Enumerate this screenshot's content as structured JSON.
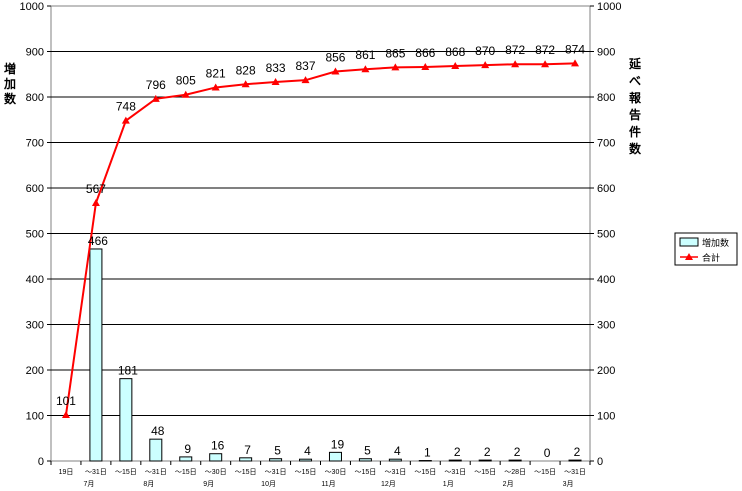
{
  "chart_data": {
    "type": "bar+line",
    "title": "",
    "ylabel_left": "増加数",
    "ylabel_right": "延べ報告件数",
    "ylim": [
      0,
      1000
    ],
    "yticks": [
      0,
      100,
      200,
      300,
      400,
      500,
      600,
      700,
      800,
      900,
      1000
    ],
    "grid": true,
    "legend_position": "right",
    "categories": [
      "19日",
      "～31日",
      "～15日",
      "～31日",
      "～15日",
      "～30日",
      "～15日",
      "～31日",
      "～15日",
      "～30日",
      "～15日",
      "～31日",
      "～15日",
      "～31日",
      "～15日",
      "～28日",
      "～15日",
      "～31日"
    ],
    "months": [
      {
        "label": "7月",
        "index": 1
      },
      {
        "label": "8月",
        "index": 3
      },
      {
        "label": "9月",
        "index": 5
      },
      {
        "label": "10月",
        "index": 7
      },
      {
        "label": "11月",
        "index": 9
      },
      {
        "label": "12月",
        "index": 11
      },
      {
        "label": "1月",
        "index": 13
      },
      {
        "label": "2月",
        "index": 15
      },
      {
        "label": "3月",
        "index": 17
      }
    ],
    "series": [
      {
        "name": "増加数",
        "type": "bar",
        "color": "#ccffff",
        "values": [
          null,
          466,
          181,
          48,
          9,
          16,
          7,
          5,
          4,
          19,
          5,
          4,
          1,
          2,
          2,
          2,
          0,
          2
        ],
        "labels": [
          "",
          "466",
          "181",
          "48",
          "9",
          "16",
          "7",
          "5",
          "4",
          "19",
          "5",
          "4",
          "1",
          "2",
          "2",
          "2",
          "0",
          "2"
        ]
      },
      {
        "name": "合計",
        "type": "line",
        "color": "#ff0000",
        "marker": "triangle",
        "values": [
          101,
          567,
          748,
          796,
          805,
          821,
          828,
          833,
          837,
          856,
          861,
          865,
          866,
          868,
          870,
          872,
          872,
          874
        ],
        "labels": [
          "101",
          "567",
          "748",
          "796",
          "805",
          "821",
          "828",
          "833",
          "837",
          "856",
          "861",
          "865",
          "866",
          "868",
          "870",
          "872",
          "872",
          "874"
        ]
      }
    ]
  }
}
